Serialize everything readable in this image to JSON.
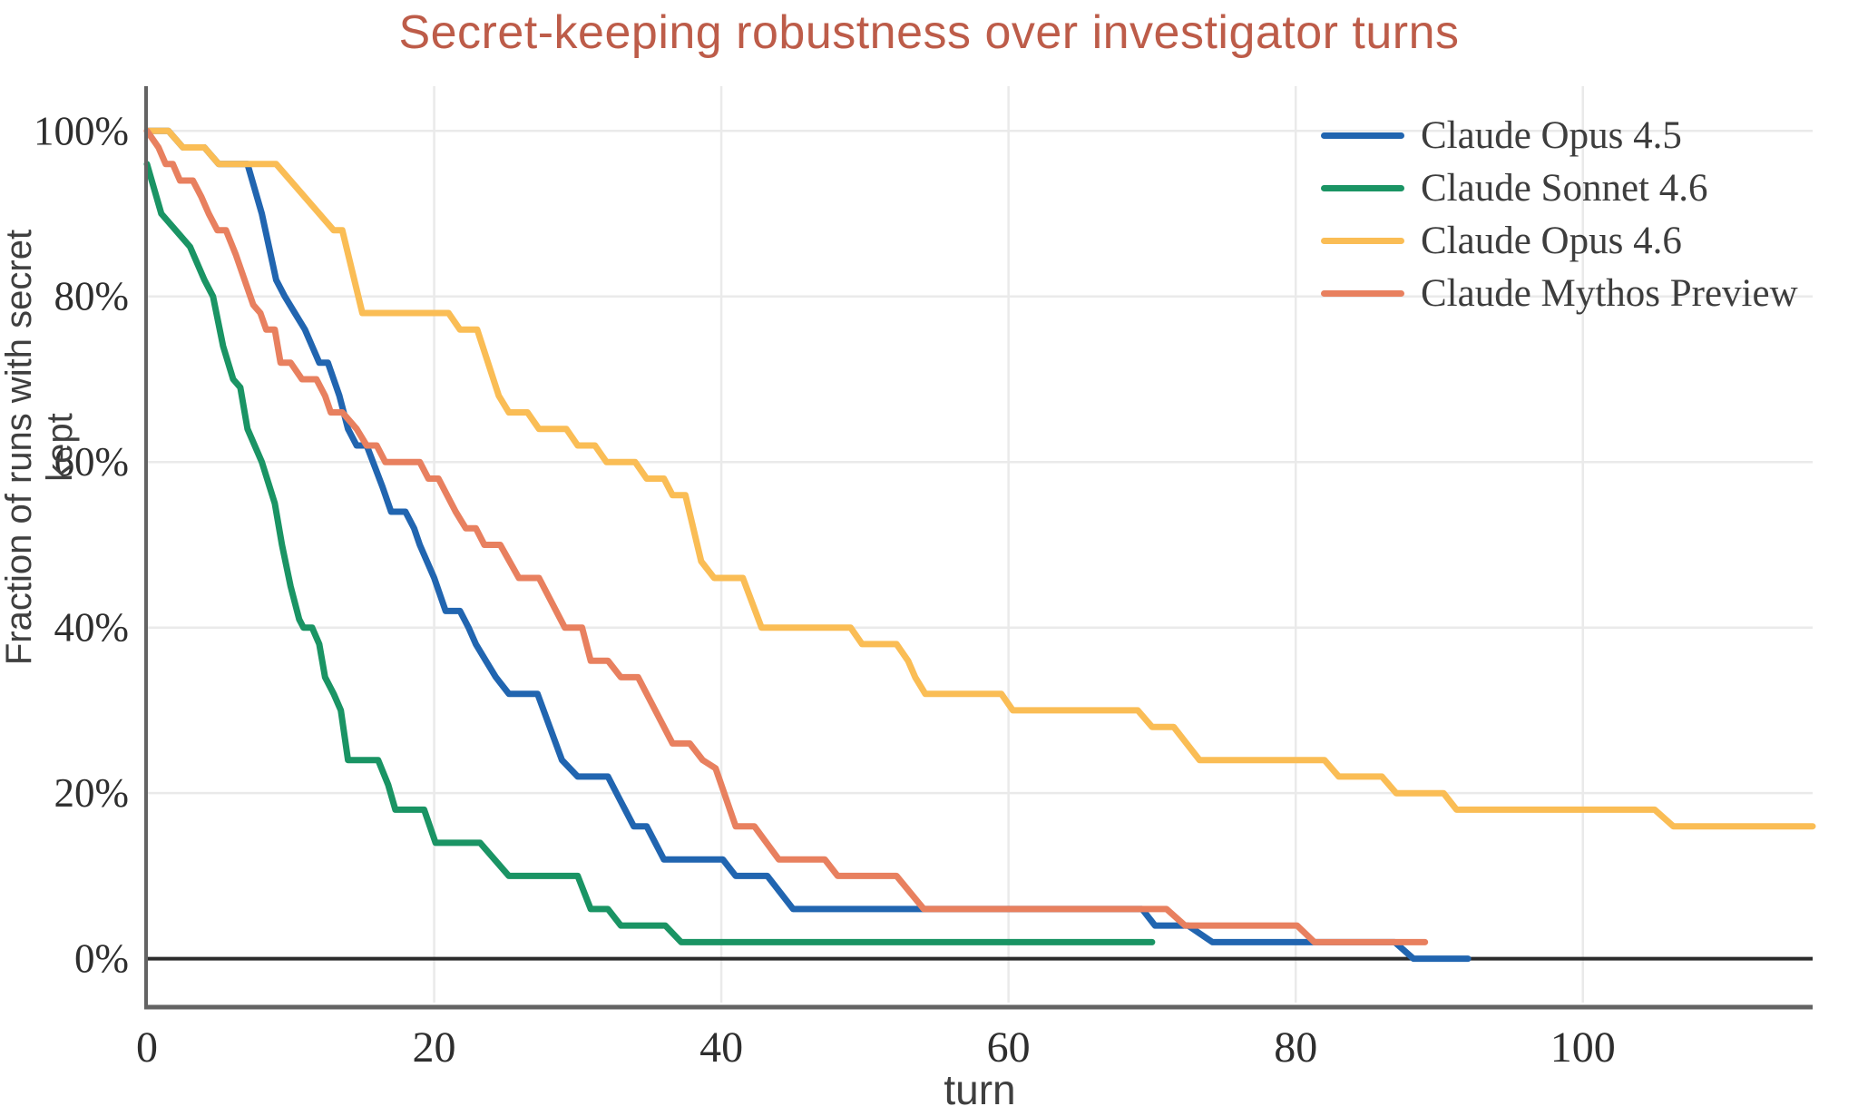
{
  "title": {
    "text": "Secret-keeping robustness over investigator turns"
  },
  "axes": {
    "x_label": "turn",
    "y_label": "Fraction of runs with secret kept",
    "x_ticks": [
      {
        "v": 0,
        "label": "0"
      },
      {
        "v": 20,
        "label": "20"
      },
      {
        "v": 40,
        "label": "40"
      },
      {
        "v": 60,
        "label": "60"
      },
      {
        "v": 80,
        "label": "80"
      },
      {
        "v": 100,
        "label": "100"
      }
    ],
    "y_ticks": [
      {
        "v": 0,
        "label": "0%"
      },
      {
        "v": 20,
        "label": "20%"
      },
      {
        "v": 40,
        "label": "40%"
      },
      {
        "v": 60,
        "label": "60%"
      },
      {
        "v": 80,
        "label": "80%"
      },
      {
        "v": 100,
        "label": "100%"
      }
    ]
  },
  "style": {
    "title_color": "#bd5c49",
    "tick_color": "#2e2e2e",
    "label_color": "#3f3f3f",
    "grid_color": "#eaeaea",
    "spine_color": "#636363",
    "zero_line_color": "#2b2b2b",
    "background": "#ffffff"
  },
  "legend": {
    "position": "upper-right"
  },
  "chart_data": {
    "type": "line",
    "title": "Secret-keeping robustness over investigator turns",
    "xlabel": "turn",
    "ylabel": "Fraction of runs with secret kept",
    "xlim": [
      0,
      116
    ],
    "ylim": [
      -5.3,
      105.4
    ],
    "grid": true,
    "legend_position": "upper right",
    "y_unit": "percent of runs with secret kept",
    "x_unit": "investigator turn",
    "series": [
      {
        "name": "Claude Opus 4.5",
        "color": "#2165b0",
        "points": [
          [
            0,
            100
          ],
          [
            1.5,
            100
          ],
          [
            2.5,
            98
          ],
          [
            4,
            98
          ],
          [
            5,
            96
          ],
          [
            7,
            96
          ],
          [
            8,
            90
          ],
          [
            9,
            82
          ],
          [
            9.6,
            80
          ],
          [
            10.3,
            78
          ],
          [
            11,
            76
          ],
          [
            12,
            72
          ],
          [
            12.6,
            72
          ],
          [
            13.4,
            68
          ],
          [
            14,
            64
          ],
          [
            14.6,
            62
          ],
          [
            15.3,
            62
          ],
          [
            16.4,
            57
          ],
          [
            17,
            54
          ],
          [
            18,
            54
          ],
          [
            18.6,
            52
          ],
          [
            19,
            50
          ],
          [
            20,
            46
          ],
          [
            20.8,
            42
          ],
          [
            21.8,
            42
          ],
          [
            22.4,
            40
          ],
          [
            22.9,
            38
          ],
          [
            23.6,
            36
          ],
          [
            24.3,
            34
          ],
          [
            25.2,
            32
          ],
          [
            27.2,
            32
          ],
          [
            28.9,
            24
          ],
          [
            30,
            22
          ],
          [
            32.1,
            22
          ],
          [
            33,
            19
          ],
          [
            33.9,
            16
          ],
          [
            34.8,
            16
          ],
          [
            36,
            12
          ],
          [
            40.1,
            12
          ],
          [
            41,
            10
          ],
          [
            43.2,
            10
          ],
          [
            45,
            6
          ],
          [
            69.3,
            6
          ],
          [
            70.2,
            4
          ],
          [
            72.5,
            4
          ],
          [
            74.2,
            2
          ],
          [
            86.9,
            2
          ],
          [
            88.2,
            0
          ],
          [
            92,
            0
          ]
        ]
      },
      {
        "name": "Claude Sonnet 4.6",
        "color": "#1a9464",
        "points": [
          [
            0,
            96
          ],
          [
            1,
            90
          ],
          [
            2,
            88
          ],
          [
            3,
            86
          ],
          [
            4,
            82
          ],
          [
            4.6,
            80
          ],
          [
            5.3,
            74
          ],
          [
            6,
            70
          ],
          [
            6.5,
            69
          ],
          [
            7,
            64
          ],
          [
            8,
            60
          ],
          [
            8.9,
            55
          ],
          [
            9.4,
            50
          ],
          [
            10,
            45
          ],
          [
            10.6,
            41
          ],
          [
            10.9,
            40
          ],
          [
            11.5,
            40
          ],
          [
            12,
            38
          ],
          [
            12.4,
            34
          ],
          [
            13,
            32
          ],
          [
            13.5,
            30
          ],
          [
            14,
            24
          ],
          [
            16.1,
            24
          ],
          [
            16.8,
            21
          ],
          [
            17.3,
            18
          ],
          [
            19.3,
            18
          ],
          [
            20.1,
            14
          ],
          [
            23.2,
            14
          ],
          [
            25.2,
            10
          ],
          [
            30,
            10
          ],
          [
            30.9,
            6
          ],
          [
            32.1,
            6
          ],
          [
            33,
            4
          ],
          [
            36.1,
            4
          ],
          [
            37.2,
            2
          ],
          [
            70,
            2
          ]
        ]
      },
      {
        "name": "Claude Opus 4.6",
        "color": "#fabd55",
        "points": [
          [
            0,
            100
          ],
          [
            1.5,
            100
          ],
          [
            2.5,
            98
          ],
          [
            4,
            98
          ],
          [
            5,
            96
          ],
          [
            9,
            96
          ],
          [
            13,
            88
          ],
          [
            13.6,
            88
          ],
          [
            15,
            78
          ],
          [
            21,
            78
          ],
          [
            21.8,
            76
          ],
          [
            23,
            76
          ],
          [
            24.5,
            68
          ],
          [
            25.2,
            66
          ],
          [
            26.5,
            66
          ],
          [
            27.3,
            64
          ],
          [
            29.2,
            64
          ],
          [
            30,
            62
          ],
          [
            31.2,
            62
          ],
          [
            32,
            60
          ],
          [
            34,
            60
          ],
          [
            34.8,
            58
          ],
          [
            36,
            58
          ],
          [
            36.6,
            56
          ],
          [
            37.5,
            56
          ],
          [
            38.6,
            48
          ],
          [
            39.5,
            46
          ],
          [
            41.5,
            46
          ],
          [
            42.8,
            40
          ],
          [
            49,
            40
          ],
          [
            49.8,
            38
          ],
          [
            52.2,
            38
          ],
          [
            53,
            36
          ],
          [
            53.5,
            34
          ],
          [
            54.2,
            32
          ],
          [
            59.5,
            32
          ],
          [
            60.3,
            30
          ],
          [
            69,
            30
          ],
          [
            70,
            28
          ],
          [
            71.5,
            28
          ],
          [
            73.3,
            24
          ],
          [
            82,
            24
          ],
          [
            83,
            22
          ],
          [
            86,
            22
          ],
          [
            87,
            20
          ],
          [
            90.3,
            20
          ],
          [
            91.2,
            18
          ],
          [
            105,
            18
          ],
          [
            106.3,
            16
          ],
          [
            116,
            16
          ]
        ]
      },
      {
        "name": "Claude Mythos Preview",
        "color": "#e8805f",
        "points": [
          [
            0,
            100
          ],
          [
            0.8,
            98
          ],
          [
            1.3,
            96
          ],
          [
            1.8,
            96
          ],
          [
            2.3,
            94
          ],
          [
            3.2,
            94
          ],
          [
            3.8,
            92
          ],
          [
            4.3,
            90
          ],
          [
            4.9,
            88
          ],
          [
            5.5,
            88
          ],
          [
            6.2,
            85
          ],
          [
            6.8,
            82
          ],
          [
            7.4,
            79
          ],
          [
            7.9,
            78
          ],
          [
            8.3,
            76
          ],
          [
            8.9,
            76
          ],
          [
            9.3,
            72
          ],
          [
            10,
            72
          ],
          [
            10.8,
            70
          ],
          [
            11.8,
            70
          ],
          [
            12.4,
            68
          ],
          [
            12.8,
            66
          ],
          [
            13.6,
            66
          ],
          [
            14.6,
            64
          ],
          [
            15.3,
            62
          ],
          [
            16,
            62
          ],
          [
            16.6,
            60
          ],
          [
            19,
            60
          ],
          [
            19.6,
            58
          ],
          [
            20.3,
            58
          ],
          [
            20.9,
            56
          ],
          [
            21.5,
            54
          ],
          [
            22.2,
            52
          ],
          [
            22.9,
            52
          ],
          [
            23.5,
            50
          ],
          [
            24.6,
            50
          ],
          [
            25.9,
            46
          ],
          [
            27.3,
            46
          ],
          [
            29.1,
            40
          ],
          [
            30.3,
            40
          ],
          [
            30.9,
            36
          ],
          [
            32.1,
            36
          ],
          [
            33,
            34
          ],
          [
            34.2,
            34
          ],
          [
            36.6,
            26
          ],
          [
            37.8,
            26
          ],
          [
            38.7,
            24
          ],
          [
            39.6,
            23
          ],
          [
            41,
            16
          ],
          [
            42.3,
            16
          ],
          [
            44,
            12
          ],
          [
            47.2,
            12
          ],
          [
            48.1,
            10
          ],
          [
            52.2,
            10
          ],
          [
            54.1,
            6
          ],
          [
            71,
            6
          ],
          [
            72.3,
            4
          ],
          [
            80.1,
            4
          ],
          [
            81.3,
            2
          ],
          [
            89,
            2
          ]
        ]
      }
    ]
  }
}
